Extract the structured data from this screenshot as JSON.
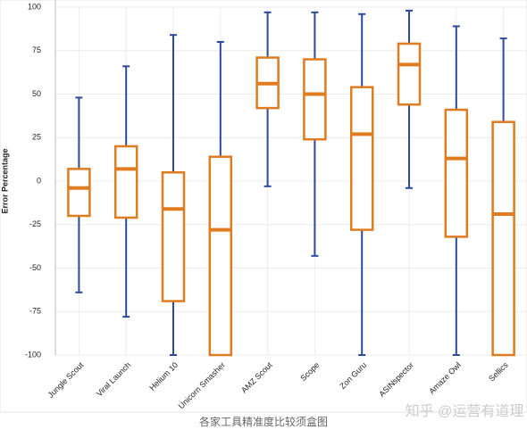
{
  "chart_data": {
    "type": "box",
    "y_label": "Error Percentage",
    "categories": [
      "Jungle Scout",
      "Viral Launch",
      "Helium 10",
      "Unicorn Smasher",
      "AMZ Scout",
      "Scope",
      "Zon Guru",
      "ASINspector",
      "Amaze Owl",
      "Sellics"
    ],
    "whisker_high": [
      48,
      66,
      84,
      80,
      97,
      97,
      96,
      98,
      89,
      82
    ],
    "q3": [
      7,
      20,
      5,
      14,
      71,
      70,
      54,
      79,
      41,
      34
    ],
    "median": [
      -4,
      7,
      -16,
      -28,
      56,
      50,
      27,
      67,
      13,
      -19
    ],
    "q1": [
      -20,
      -21,
      -69,
      -100,
      42,
      24,
      -28,
      44,
      -32,
      -100
    ],
    "whisker_low": [
      -64,
      -78,
      -100,
      -100,
      -3,
      -43,
      -100,
      -4,
      -100,
      -100
    ],
    "box_color": "#e07b1f",
    "whisker_color": "#2b4a9b",
    "ylim": [
      -100,
      100
    ],
    "yticks": [
      -100,
      -75,
      -50,
      -25,
      0,
      25,
      50,
      75,
      100
    ],
    "grid": true,
    "caption": "各家工具精准度比较须盒图",
    "watermark": "知乎 @运营有道理"
  }
}
